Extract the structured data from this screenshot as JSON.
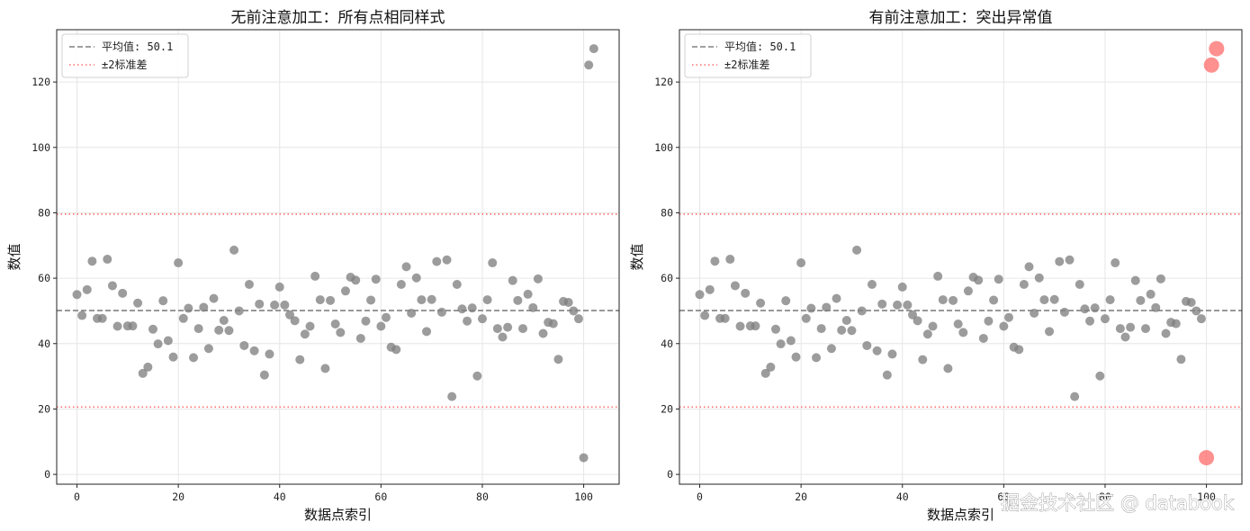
{
  "chart_data": [
    {
      "type": "scatter",
      "title": "无前注意加工：所有点相同样式",
      "xlabel": "数据点索引",
      "ylabel": "数值",
      "xlim": [
        -4,
        107
      ],
      "ylim": [
        -3,
        136
      ],
      "xticks": [
        0,
        20,
        40,
        60,
        80,
        100
      ],
      "yticks": [
        0,
        20,
        40,
        60,
        80,
        100,
        120
      ],
      "grid": true,
      "legend_position": "top-left",
      "mean_line": {
        "value": 50.1,
        "label": "平均值: 50.1",
        "color": "#808080",
        "style": "dashed"
      },
      "std_lines": {
        "values": [
          20.6,
          79.6
        ],
        "label": "±2标准差",
        "color": "#ff6b6b",
        "style": "dotted"
      },
      "series": [
        {
          "color": "#808080",
          "x": [
            0,
            1,
            2,
            3,
            4,
            5,
            6,
            7,
            8,
            9,
            10,
            11,
            12,
            13,
            14,
            15,
            16,
            17,
            18,
            19,
            20,
            21,
            22,
            23,
            24,
            25,
            26,
            27,
            28,
            29,
            30,
            31,
            32,
            33,
            34,
            35,
            36,
            37,
            38,
            39,
            40,
            41,
            42,
            43,
            44,
            45,
            46,
            47,
            48,
            49,
            50,
            51,
            52,
            53,
            54,
            55,
            56,
            57,
            58,
            59,
            60,
            61,
            62,
            63,
            64,
            65,
            66,
            67,
            68,
            69,
            70,
            71,
            72,
            73,
            74,
            75,
            76,
            77,
            78,
            79,
            80,
            81,
            82,
            83,
            84,
            85,
            86,
            87,
            88,
            89,
            90,
            91,
            92,
            93,
            94,
            95,
            96,
            97,
            98,
            99,
            100,
            101,
            102
          ],
          "y": [
            55,
            48.6,
            56.5,
            65.2,
            47.7,
            47.7,
            65.8,
            57.7,
            45.3,
            55.4,
            45.4,
            45.4,
            52.4,
            30.9,
            32.8,
            44.4,
            39.9,
            53.1,
            40.9,
            35.9,
            64.7,
            47.7,
            50.8,
            35.7,
            44.6,
            51.1,
            38.5,
            53.8,
            44.1,
            47.1,
            44,
            68.6,
            50,
            39.4,
            58.1,
            37.8,
            52.1,
            30.4,
            36.8,
            51.8,
            57.3,
            51.8,
            48.8,
            47,
            35.1,
            42.9,
            45.3,
            60.6,
            53.4,
            32.4,
            53.2,
            46,
            43.4,
            56.1,
            60.3,
            59.4,
            41.6,
            46.9,
            53.3,
            59.7,
            45.3,
            48,
            38.9,
            38.2,
            58.1,
            63.5,
            49.3,
            60.1,
            53.4,
            43.7,
            53.5,
            65.1,
            49.6,
            65.6,
            23.8,
            58.1,
            50.6,
            46.9,
            50.9,
            30.1,
            47.6,
            53.4,
            64.7,
            44.6,
            42,
            45,
            59.3,
            53.2,
            44.6,
            55.1,
            51,
            59.8,
            43.1,
            46.5,
            46.1,
            35.2,
            52.9,
            52.6,
            50,
            47.6,
            5.1,
            125.2,
            130.2
          ]
        }
      ]
    },
    {
      "type": "scatter",
      "title": "有前注意加工：突出异常值",
      "xlabel": "数据点索引",
      "ylabel": "数值",
      "xlim": [
        -4,
        107
      ],
      "ylim": [
        -3,
        136
      ],
      "xticks": [
        0,
        20,
        40,
        60,
        80,
        100
      ],
      "yticks": [
        0,
        20,
        40,
        60,
        80,
        100,
        120
      ],
      "grid": true,
      "legend_position": "top-left",
      "mean_line": {
        "value": 50.1,
        "label": "平均值: 50.1",
        "color": "#808080",
        "style": "dashed"
      },
      "std_lines": {
        "values": [
          20.6,
          79.6
        ],
        "label": "±2标准差",
        "color": "#ff6b6b",
        "style": "dotted"
      },
      "series": [
        {
          "color": "#808080",
          "x": [
            0,
            1,
            2,
            3,
            4,
            5,
            6,
            7,
            8,
            9,
            10,
            11,
            12,
            13,
            14,
            15,
            16,
            17,
            18,
            19,
            20,
            21,
            22,
            23,
            24,
            25,
            26,
            27,
            28,
            29,
            30,
            31,
            32,
            33,
            34,
            35,
            36,
            37,
            38,
            39,
            40,
            41,
            42,
            43,
            44,
            45,
            46,
            47,
            48,
            49,
            50,
            51,
            52,
            53,
            54,
            55,
            56,
            57,
            58,
            59,
            60,
            61,
            62,
            63,
            64,
            65,
            66,
            67,
            68,
            69,
            70,
            71,
            72,
            73,
            74,
            75,
            76,
            77,
            78,
            79,
            80,
            81,
            82,
            83,
            84,
            85,
            86,
            87,
            88,
            89,
            90,
            91,
            92,
            93,
            94,
            95,
            96,
            97,
            98,
            99
          ],
          "y": [
            55,
            48.6,
            56.5,
            65.2,
            47.7,
            47.7,
            65.8,
            57.7,
            45.3,
            55.4,
            45.4,
            45.4,
            52.4,
            30.9,
            32.8,
            44.4,
            39.9,
            53.1,
            40.9,
            35.9,
            64.7,
            47.7,
            50.8,
            35.7,
            44.6,
            51.1,
            38.5,
            53.8,
            44.1,
            47.1,
            44,
            68.6,
            50,
            39.4,
            58.1,
            37.8,
            52.1,
            30.4,
            36.8,
            51.8,
            57.3,
            51.8,
            48.8,
            47,
            35.1,
            42.9,
            45.3,
            60.6,
            53.4,
            32.4,
            53.2,
            46,
            43.4,
            56.1,
            60.3,
            59.4,
            41.6,
            46.9,
            53.3,
            59.7,
            45.3,
            48,
            38.9,
            38.2,
            58.1,
            63.5,
            49.3,
            60.1,
            53.4,
            43.7,
            53.5,
            65.1,
            49.6,
            65.6,
            23.8,
            58.1,
            50.6,
            46.9,
            50.9,
            30.1,
            47.6,
            53.4,
            64.7,
            44.6,
            42,
            45,
            59.3,
            53.2,
            44.6,
            55.1,
            51,
            59.8,
            43.1,
            46.5,
            46.1,
            35.2,
            52.9,
            52.6,
            50,
            47.6
          ]
        },
        {
          "color": "#ff6b6b",
          "highlighted": true,
          "x": [
            100,
            101,
            102
          ],
          "y": [
            5.1,
            125.2,
            130.2
          ]
        }
      ]
    }
  ],
  "watermark": "掘金技术社区 @ databook"
}
